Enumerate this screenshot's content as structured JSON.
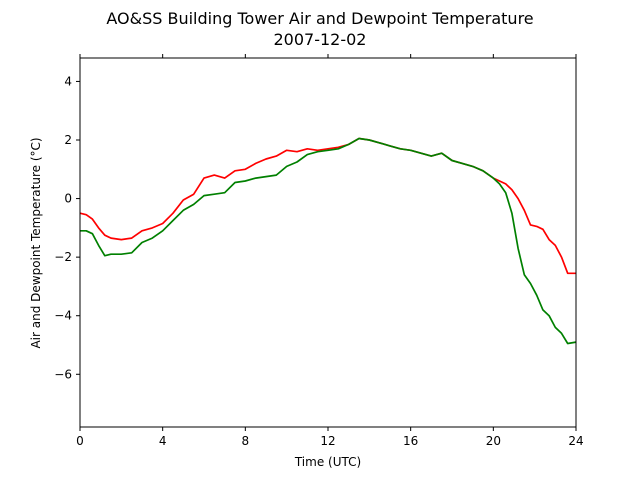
{
  "chart_data": {
    "type": "line",
    "title": "AO&SS Building Tower Air and Dewpoint Temperature",
    "subtitle": "2007-12-02",
    "xlabel": "Time (UTC)",
    "ylabel": "Air and Dewpoint Temperature (°C)",
    "xlim": [
      0,
      24
    ],
    "ylim": [
      -7.8,
      4.8
    ],
    "xticks": [
      0,
      4,
      8,
      12,
      16,
      20,
      24
    ],
    "yticks": [
      -6,
      -4,
      -2,
      0,
      2,
      4
    ],
    "ytick_labels": [
      "−6",
      "−4",
      "−2",
      "0",
      "2",
      "4"
    ],
    "grid": false,
    "legend": "none",
    "series": [
      {
        "color": "#ff0000",
        "x": [
          0,
          0.3,
          0.6,
          0.9,
          1.2,
          1.5,
          2.0,
          2.5,
          3.0,
          3.5,
          4.0,
          4.5,
          5.0,
          5.5,
          6.0,
          6.5,
          7.0,
          7.5,
          8.0,
          8.5,
          9.0,
          9.5,
          10.0,
          10.5,
          11.0,
          11.5,
          12.0,
          12.5,
          13.0,
          13.5,
          14.0,
          14.5,
          15.0,
          15.5,
          16.0,
          16.5,
          17.0,
          17.5,
          18.0,
          18.5,
          19.0,
          19.5,
          20.0,
          20.3,
          20.6,
          20.9,
          21.2,
          21.5,
          21.8,
          22.1,
          22.4,
          22.7,
          23.0,
          23.3,
          23.6,
          24.0
        ],
        "y": [
          -0.5,
          -0.55,
          -0.7,
          -1.0,
          -1.25,
          -1.35,
          -1.4,
          -1.35,
          -1.1,
          -1.0,
          -0.85,
          -0.5,
          -0.05,
          0.15,
          0.7,
          0.8,
          0.7,
          0.95,
          1.0,
          1.2,
          1.35,
          1.45,
          1.65,
          1.6,
          1.7,
          1.65,
          1.7,
          1.75,
          1.85,
          2.05,
          2.0,
          1.9,
          1.8,
          1.7,
          1.65,
          1.55,
          1.45,
          1.55,
          1.3,
          1.2,
          1.1,
          0.95,
          0.7,
          0.6,
          0.5,
          0.3,
          0.0,
          -0.4,
          -0.9,
          -0.95,
          -1.05,
          -1.4,
          -1.6,
          -2.0,
          -2.55,
          -2.55
        ]
      },
      {
        "color": "#008000",
        "x": [
          0,
          0.3,
          0.6,
          0.9,
          1.2,
          1.5,
          2.0,
          2.5,
          3.0,
          3.5,
          4.0,
          4.5,
          5.0,
          5.5,
          6.0,
          6.5,
          7.0,
          7.5,
          8.0,
          8.5,
          9.0,
          9.5,
          10.0,
          10.5,
          11.0,
          11.5,
          12.0,
          12.5,
          13.0,
          13.5,
          14.0,
          14.5,
          15.0,
          15.5,
          16.0,
          16.5,
          17.0,
          17.5,
          18.0,
          18.5,
          19.0,
          19.5,
          20.0,
          20.3,
          20.6,
          20.9,
          21.2,
          21.5,
          21.8,
          22.1,
          22.4,
          22.7,
          23.0,
          23.3,
          23.6,
          24.0
        ],
        "y": [
          -1.1,
          -1.1,
          -1.2,
          -1.6,
          -1.95,
          -1.9,
          -1.9,
          -1.85,
          -1.5,
          -1.35,
          -1.1,
          -0.75,
          -0.4,
          -0.2,
          0.1,
          0.15,
          0.2,
          0.55,
          0.6,
          0.7,
          0.75,
          0.8,
          1.1,
          1.25,
          1.5,
          1.6,
          1.65,
          1.7,
          1.85,
          2.05,
          2.0,
          1.9,
          1.8,
          1.7,
          1.65,
          1.55,
          1.45,
          1.55,
          1.3,
          1.2,
          1.1,
          0.95,
          0.7,
          0.5,
          0.2,
          -0.5,
          -1.7,
          -2.6,
          -2.9,
          -3.3,
          -3.8,
          -4.0,
          -4.4,
          -4.6,
          -4.95,
          -4.9
        ]
      }
    ]
  }
}
